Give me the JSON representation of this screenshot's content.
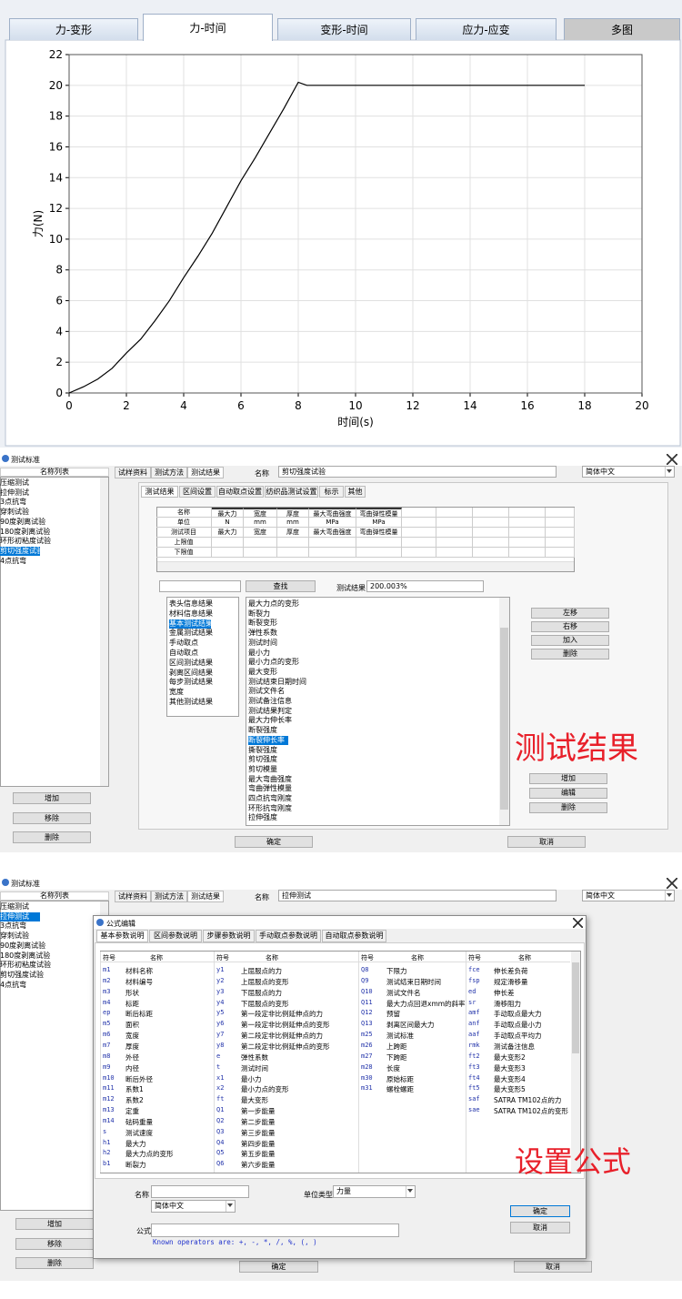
{
  "chart_tabs": {
    "items": [
      "力-变形",
      "力-时间",
      "变形-时间",
      "应力-应变",
      "多图"
    ],
    "active": 1
  },
  "chart_data": {
    "type": "line",
    "xlabel": "时间(s)",
    "ylabel": "力(N)",
    "x": [
      0,
      0.5,
      1,
      1.5,
      2,
      2.5,
      3,
      3.5,
      4,
      4.5,
      5,
      5.5,
      6,
      6.5,
      7,
      7.5,
      8,
      8.3,
      9,
      10,
      11,
      12,
      13,
      14,
      15,
      16,
      17,
      18
    ],
    "values": [
      0,
      0.4,
      0.9,
      1.6,
      2.6,
      3.5,
      4.7,
      6.0,
      7.5,
      8.9,
      10.4,
      12.1,
      13.8,
      15.3,
      16.9,
      18.5,
      20.2,
      20.0,
      20.0,
      20.0,
      20.0,
      20.0,
      20.0,
      20.0,
      20.0,
      20.0,
      20.0,
      20.0
    ],
    "color": "#000000",
    "xlim": [
      0,
      20
    ],
    "ylim": [
      0,
      22
    ],
    "xticks": [
      0,
      2,
      4,
      6,
      8,
      10,
      12,
      14,
      16,
      18,
      20
    ],
    "yticks": [
      0,
      2,
      4,
      6,
      8,
      10,
      12,
      14,
      16,
      18,
      20,
      22
    ],
    "grid": true
  },
  "result_dialog": {
    "title": "测试标准",
    "list_header": "名称列表",
    "standards": [
      "压缩测试",
      "拉伸测试",
      "3点抗弯",
      "穿刺试验",
      "90度剥离试验",
      "180度剥离试验",
      "环形初粘度试验",
      "剪切强度试验",
      "4点抗弯"
    ],
    "selected_standard": 7,
    "left_buttons": [
      "增加",
      "移除",
      "删除"
    ],
    "tabs": [
      "试样资料",
      "测试方法",
      "测试结果"
    ],
    "active_tab": 2,
    "name_label": "名称",
    "name_value": "剪切强度试验",
    "language": "简体中文",
    "subtabs": [
      "测试结果",
      "区间设置",
      "自动取点设置",
      "纺织品测试设置",
      "标示",
      "其他"
    ],
    "table": [
      [
        "名称",
        "最大力",
        "宽度",
        "厚度",
        "最大弯曲强度",
        "弯曲弹性模量"
      ],
      [
        "单位",
        "N",
        "mm",
        "mm",
        "MPa",
        "MPa"
      ],
      [
        "测试项目",
        "最大力",
        "宽度",
        "厚度",
        "最大弯曲强度",
        "弯曲弹性模量"
      ],
      [
        "上限值"
      ],
      [
        "下限值"
      ]
    ],
    "search_button": "查找",
    "result_label": "测试结果",
    "result_value": "200.003%",
    "categories": [
      "表头信息结果",
      "材料信息结果",
      "基本测试结果",
      "金属测试结果",
      "手动取点",
      "自动取点",
      "区间测试结果",
      "剥离区间结果",
      "每步测试结果",
      "宽度",
      "其他测试结果"
    ],
    "selected_category": 2,
    "items": [
      "最大力点的变形",
      "断裂力",
      "断裂变形",
      "弹性系数",
      "测试时间",
      "最小力",
      "最小力点的变形",
      "最大变形",
      "测试结束日期时间",
      "测试文件名",
      "测试备注信息",
      "测试结果判定",
      "最大力伸长率",
      "断裂强度",
      "断裂伸长率",
      "撕裂强度",
      "剪切强度",
      "剪切模量",
      "最大弯曲强度",
      "弯曲弹性模量",
      "四点抗弯刚度",
      "环形抗弯刚度",
      "拉伸强度"
    ],
    "selected_item": 14,
    "move_buttons": [
      "左移",
      "右移",
      "加入",
      "删除"
    ],
    "edit_buttons": [
      "增加",
      "编辑",
      "删除"
    ],
    "ok": "确定",
    "cancel": "取消",
    "annotation": "测试结果"
  },
  "formula_dialog": {
    "title": "测试标准",
    "list_header": "名称列表",
    "standards": [
      "压缩测试",
      "拉伸测试",
      "3点抗弯",
      "穿刺试验",
      "90度剥离试验",
      "180度剥离试验",
      "环形初粘度试验",
      "剪切强度试验",
      "4点抗弯"
    ],
    "selected_standard": 1,
    "left_buttons": [
      "增加",
      "移除",
      "删除"
    ],
    "tabs": [
      "试样资料",
      "测试方法",
      "测试结果"
    ],
    "active_tab": 2,
    "name_label": "名称",
    "name_value": "拉伸测试",
    "language": "简体中文",
    "editor": {
      "title": "公式编辑",
      "tabs": [
        "基本参数说明",
        "区间参数说明",
        "步骤参数说明",
        "手动取点参数说明",
        "自动取点参数说明"
      ],
      "header": [
        "符号",
        "名称"
      ],
      "columns": [
        [
          [
            "m1",
            "材料名称"
          ],
          [
            "m2",
            "材料编号"
          ],
          [
            "m3",
            "形状"
          ],
          [
            "m4",
            "标距"
          ],
          [
            "ep",
            "断后标距"
          ],
          [
            "m5",
            "面积"
          ],
          [
            "m6",
            "宽度"
          ],
          [
            "m7",
            "厚度"
          ],
          [
            "m8",
            "外径"
          ],
          [
            "m9",
            "内径"
          ],
          [
            "m10",
            "断后外径"
          ],
          [
            "m11",
            "系数1"
          ],
          [
            "m12",
            "系数2"
          ],
          [
            "m13",
            "定重"
          ],
          [
            "m14",
            "砝码重量"
          ],
          [
            "s",
            "测试速度"
          ],
          [
            "h1",
            "最大力"
          ],
          [
            "h2",
            "最大力点的变形"
          ],
          [
            "b1",
            "断裂力"
          ]
        ],
        [
          [
            "y1",
            "上屈服点的力"
          ],
          [
            "y2",
            "上屈服点的变形"
          ],
          [
            "y3",
            "下屈服点的力"
          ],
          [
            "y4",
            "下屈服点的变形"
          ],
          [
            "y5",
            "第一段定非比例延伸点的力"
          ],
          [
            "y6",
            "第一段定非比例延伸点的变形"
          ],
          [
            "y7",
            "第二段定非比例延伸点的力"
          ],
          [
            "y8",
            "第二段定非比例延伸点的变形"
          ],
          [
            "e",
            "弹性系数"
          ],
          [
            "t",
            "测试时间"
          ],
          [
            "x1",
            "最小力"
          ],
          [
            "x2",
            "最小力点的变形"
          ],
          [
            "ft",
            "最大变形"
          ],
          [
            "Q1",
            "第一步能量"
          ],
          [
            "Q2",
            "第二步能量"
          ],
          [
            "Q3",
            "第三步能量"
          ],
          [
            "Q4",
            "第四步能量"
          ],
          [
            "Q5",
            "第五步能量"
          ],
          [
            "Q6",
            "第六步能量"
          ]
        ],
        [
          [
            "Q8",
            "下限力"
          ],
          [
            "Q9",
            "测试结束日期时间"
          ],
          [
            "Q10",
            "测试文件名"
          ],
          [
            "Q11",
            "最大力点回退xmm的斜率"
          ],
          [
            "Q12",
            "预留"
          ],
          [
            "Q13",
            "剥离区间最大力"
          ],
          [
            "m25",
            "测试标准"
          ],
          [
            "m26",
            "上跨距"
          ],
          [
            "m27",
            "下跨距"
          ],
          [
            "m28",
            "长度"
          ],
          [
            "m30",
            "原始标距"
          ],
          [
            "m31",
            "螺栓螺距"
          ]
        ],
        [
          [
            "fce",
            "伸长差负荷"
          ],
          [
            "fsp",
            "规定滑移量"
          ],
          [
            "ed",
            "伸长差"
          ],
          [
            "sr",
            "滑移阻力"
          ],
          [
            "amf",
            "手动取点最大力"
          ],
          [
            "anf",
            "手动取点最小力"
          ],
          [
            "aaf",
            "手动取点平均力"
          ],
          [
            "rmk",
            "测试备注信息"
          ],
          [
            "ft2",
            "最大变形2"
          ],
          [
            "ft3",
            "最大变形3"
          ],
          [
            "ft4",
            "最大变形4"
          ],
          [
            "ft5",
            "最大变形5"
          ],
          [
            "saf",
            "SATRA TM102点的力"
          ],
          [
            "sae",
            "SATRA TM102点的变形"
          ]
        ]
      ],
      "name_label": "名称",
      "language": "简体中文",
      "unit_label": "单位类型",
      "unit_value": "力量",
      "formula_label": "公式",
      "operators": "Known operators are: +, -, *, /, %, (, )",
      "ok": "确定",
      "cancel": "取消"
    },
    "ok": "确定",
    "cancel": "取消",
    "annotation": "设置公式"
  }
}
